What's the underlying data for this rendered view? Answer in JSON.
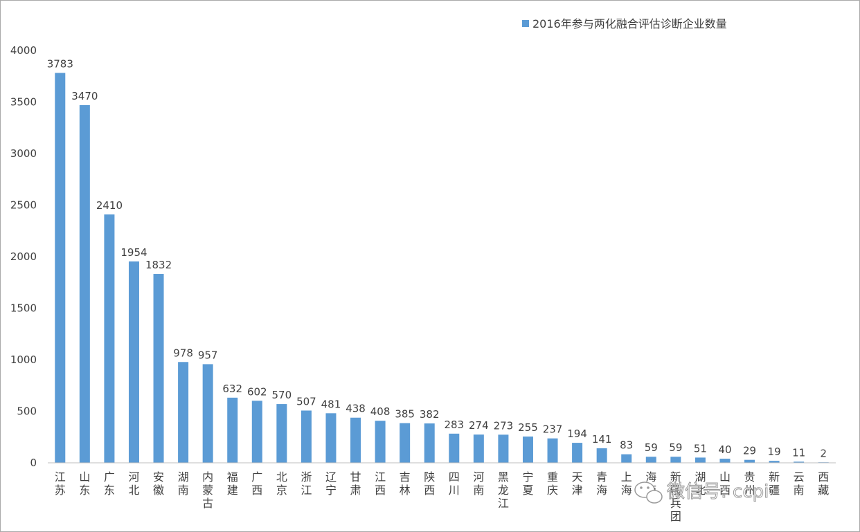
{
  "chart_data": {
    "type": "bar",
    "title": "",
    "xlabel": "",
    "ylabel": "",
    "ylim": [
      0,
      4000
    ],
    "yticks": [
      0,
      500,
      1000,
      1500,
      2000,
      2500,
      3000,
      3500,
      4000
    ],
    "grid": false,
    "legend_position": "top-right",
    "categories": [
      "江苏",
      "山东",
      "广东",
      "河北",
      "安徽",
      "湖南",
      "内蒙古",
      "福建",
      "广西",
      "北京",
      "浙江",
      "辽宁",
      "甘肃",
      "江西",
      "吉林",
      "陕西",
      "四川",
      "河南",
      "黑龙江",
      "宁夏",
      "重庆",
      "天津",
      "青海",
      "上海",
      "海南",
      "新疆兵团",
      "湖北",
      "山西",
      "贵州",
      "新疆",
      "云南",
      "西藏"
    ],
    "series": [
      {
        "name": "2016年参与两化融合评估诊断企业数量",
        "color": "#5b9bd5",
        "values": [
          3783,
          3470,
          2410,
          1954,
          1832,
          978,
          957,
          632,
          602,
          570,
          507,
          481,
          438,
          408,
          385,
          382,
          283,
          274,
          273,
          255,
          237,
          194,
          141,
          83,
          59,
          59,
          51,
          40,
          29,
          19,
          11,
          2
        ]
      }
    ]
  },
  "watermark": {
    "text": "微信号: ccpi",
    "icon": "wechat-logo-icon"
  }
}
